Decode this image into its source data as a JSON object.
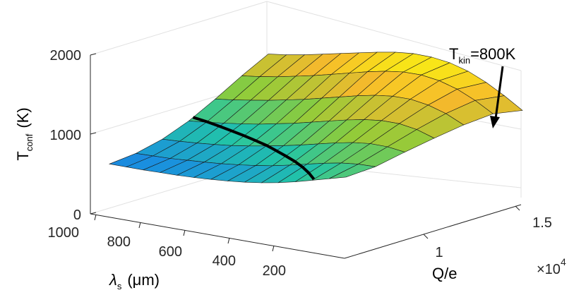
{
  "chart_data": {
    "type": "surface",
    "z_label": {
      "main": "T",
      "sub": "conf",
      "unit": "(K)"
    },
    "x_label": {
      "main": "λ",
      "sub": "s",
      "unit": "(μm)"
    },
    "y_label": "Q/e",
    "y_exponent": {
      "base": "×10",
      "power": "4"
    },
    "z_ticks": [
      "0",
      "1000",
      "2000"
    ],
    "x_ticks": [
      "1000",
      "800",
      "600",
      "400",
      "200"
    ],
    "y_ticks": [
      "1",
      "1.5"
    ],
    "zlim": [
      0,
      2000
    ],
    "grid": true,
    "colormap": [
      "#3e26a8",
      "#1a8fe0",
      "#22c5a6",
      "#8fcc3a",
      "#f6b92c",
      "#f9fb0e"
    ],
    "annotation": {
      "main": "T",
      "sub": "kin",
      "rest": "=800K"
    },
    "surface_values": [
      [
        330,
        345,
        360,
        380,
        400,
        425,
        455,
        490,
        530,
        580,
        640,
        710,
        790,
        870,
        950
      ],
      [
        420,
        440,
        460,
        490,
        520,
        555,
        595,
        640,
        695,
        760,
        830,
        900,
        960,
        1000,
        1020
      ],
      [
        560,
        585,
        615,
        650,
        690,
        740,
        795,
        855,
        920,
        990,
        1060,
        1120,
        1160,
        1170,
        1150
      ],
      [
        760,
        795,
        835,
        880,
        930,
        990,
        1050,
        1120,
        1190,
        1260,
        1320,
        1360,
        1370,
        1340,
        1270
      ],
      [
        1010,
        1050,
        1100,
        1150,
        1210,
        1270,
        1340,
        1410,
        1480,
        1540,
        1580,
        1590,
        1560,
        1490,
        1380
      ],
      [
        1280,
        1320,
        1370,
        1430,
        1490,
        1560,
        1630,
        1700,
        1760,
        1800,
        1810,
        1780,
        1710,
        1600,
        1460
      ],
      [
        1530,
        1570,
        1620,
        1680,
        1740,
        1800,
        1860,
        1910,
        1940,
        1940,
        1910,
        1840,
        1730,
        1590,
        1430
      ]
    ],
    "tkin_contour_level": 800
  }
}
